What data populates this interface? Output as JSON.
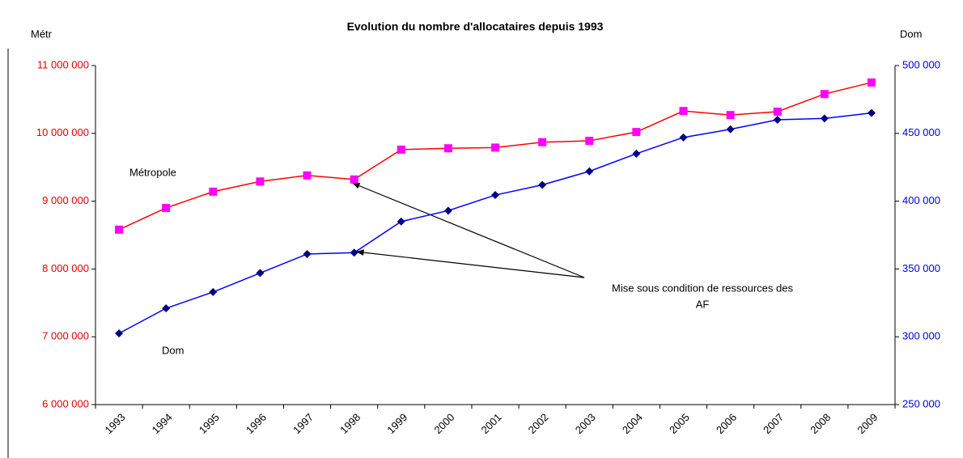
{
  "chart_data": {
    "type": "line",
    "title": "Evolution du nombre d'allocataires depuis 1993",
    "ylabel": "Métr",
    "y2label": "Dom",
    "categories": [
      "1993",
      "1994",
      "1995",
      "1996",
      "1997",
      "1998",
      "1999",
      "2000",
      "2001",
      "2002",
      "2003",
      "2004",
      "2005",
      "2006",
      "2007",
      "2008",
      "2009"
    ],
    "series": [
      {
        "name": "Métropole",
        "color": "#ff00ff",
        "line_color": "#ff0000",
        "marker": "square",
        "axis": "y",
        "values": [
          8580000,
          8900000,
          9140000,
          9290000,
          9380000,
          9320000,
          9760000,
          9780000,
          9790000,
          9870000,
          9890000,
          10020000,
          10330000,
          10270000,
          10320000,
          10580000,
          10750000
        ]
      },
      {
        "name": "Dom",
        "color": "#000080",
        "line_color": "#0000ff",
        "marker": "diamond",
        "axis": "y2",
        "values": [
          302500,
          321000,
          333000,
          347000,
          361000,
          362000,
          385000,
          393000,
          404500,
          412000,
          422000,
          435000,
          447000,
          453000,
          460000,
          461000,
          465000
        ]
      }
    ],
    "ylim": [
      6000000,
      11000000
    ],
    "yticks": [
      {
        "value": 6000000,
        "label": "6 000 000"
      },
      {
        "value": 7000000,
        "label": "7 000 000"
      },
      {
        "value": 8000000,
        "label": "8 000 000"
      },
      {
        "value": 9000000,
        "label": "9 000 000"
      },
      {
        "value": 10000000,
        "label": "10 000 000"
      },
      {
        "value": 11000000,
        "label": "11 000 000"
      }
    ],
    "y2lim": [
      250000,
      500000
    ],
    "y2ticks": [
      {
        "value": 250000,
        "label": "250 000"
      },
      {
        "value": 300000,
        "label": "300 000"
      },
      {
        "value": 350000,
        "label": "350 000"
      },
      {
        "value": 400000,
        "label": "400 000"
      },
      {
        "value": 450000,
        "label": "450 000"
      },
      {
        "value": 500000,
        "label": "500 000"
      }
    ],
    "annotation": [
      "Mise sous condition de ressources des",
      "AF"
    ]
  }
}
